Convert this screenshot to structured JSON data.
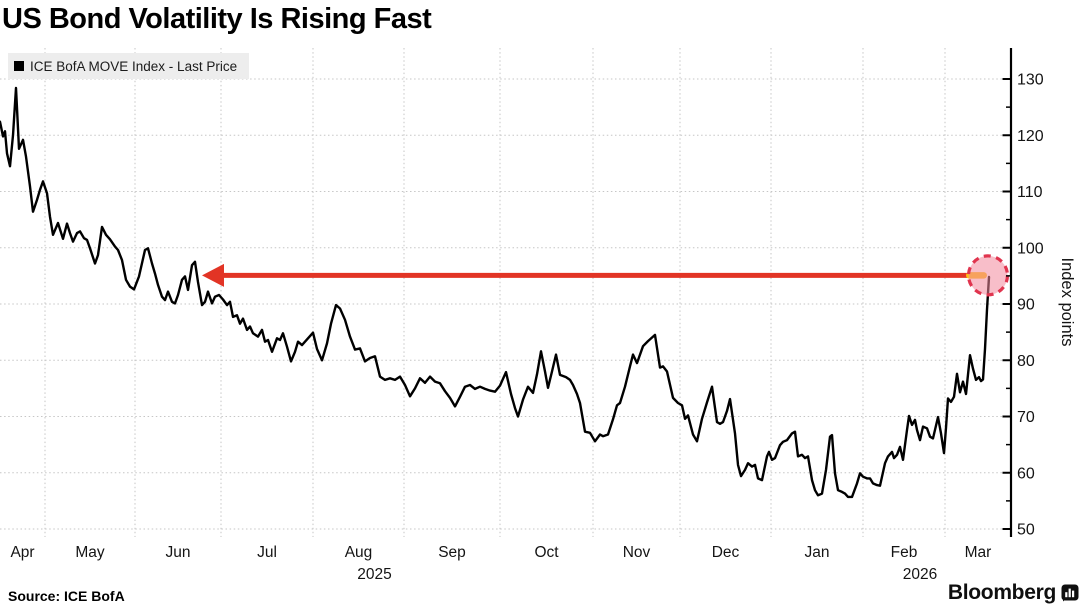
{
  "header": {
    "title": "US Bond Volatility Is Rising Fast"
  },
  "legend": {
    "series_label": "ICE BofA MOVE Index - Last Price",
    "swatch_color": "#000000"
  },
  "footer": {
    "source": "Source: ICE BofA",
    "brand": "Bloomberg"
  },
  "axes": {
    "y_label": "Index points",
    "y_ticks": [
      50,
      60,
      70,
      80,
      90,
      100,
      110,
      120,
      130
    ],
    "y_minor_ticks": [
      55,
      65,
      75,
      85,
      95,
      105,
      115,
      125
    ],
    "x_months": [
      "Apr",
      "May",
      "Jun",
      "Jul",
      "Aug",
      "Sep",
      "Oct",
      "Nov",
      "Dec",
      "Jan",
      "Feb",
      "Mar"
    ],
    "x_years": [
      {
        "label": "2025",
        "month_index": 4
      },
      {
        "label": "2026",
        "month_index": 10
      }
    ]
  },
  "annotation": {
    "arrow_color": "#e23425",
    "circle_stroke": "#e0344e",
    "circle_fill": "rgba(243,137,157,0.55)",
    "dash_color": "#fdc012",
    "highlight_level": 95
  },
  "chart_data": {
    "type": "line",
    "title": "US Bond Volatility Is Rising Fast",
    "series_name": "ICE BofA MOVE Index - Last Price",
    "xlabel": "Apr 2025 - Mar 2026",
    "ylabel": "Index points",
    "ylim": [
      50,
      130
    ],
    "grid": true,
    "legend_position": "top-left",
    "line_color": "#000000",
    "last_price": 94.8,
    "x_unit": "plot-px (0 = mid-Apr 2025, 1011 = right axis, months marked by gridlines)",
    "y_unit": "index points",
    "points": [
      [
        0,
        122.4
      ],
      [
        3,
        119.8
      ],
      [
        5,
        120.7
      ],
      [
        7,
        116.8
      ],
      [
        10,
        114.5
      ],
      [
        13,
        120.0
      ],
      [
        16,
        128.4
      ],
      [
        19,
        117.6
      ],
      [
        23,
        119.2
      ],
      [
        26,
        116.2
      ],
      [
        30,
        110.9
      ],
      [
        33,
        106.4
      ],
      [
        37,
        108.5
      ],
      [
        40,
        110.3
      ],
      [
        43,
        111.8
      ],
      [
        47,
        109.7
      ],
      [
        50,
        105.5
      ],
      [
        53,
        102.3
      ],
      [
        58,
        104.4
      ],
      [
        63,
        101.6
      ],
      [
        67,
        104.3
      ],
      [
        70,
        102.6
      ],
      [
        73,
        101.1
      ],
      [
        77,
        102.6
      ],
      [
        80,
        102.9
      ],
      [
        84,
        101.7
      ],
      [
        87,
        101.4
      ],
      [
        90,
        99.9
      ],
      [
        95,
        97.2
      ],
      [
        98,
        98.7
      ],
      [
        102,
        103.7
      ],
      [
        106,
        102.3
      ],
      [
        110,
        101.5
      ],
      [
        115,
        100.2
      ],
      [
        118,
        99.6
      ],
      [
        122,
        97.8
      ],
      [
        126,
        94.3
      ],
      [
        130,
        93.1
      ],
      [
        134,
        92.6
      ],
      [
        139,
        94.9
      ],
      [
        145,
        99.6
      ],
      [
        148,
        99.9
      ],
      [
        152,
        97.2
      ],
      [
        155,
        95.4
      ],
      [
        158,
        93.4
      ],
      [
        162,
        91.3
      ],
      [
        165,
        90.7
      ],
      [
        168,
        92.2
      ],
      [
        172,
        90.4
      ],
      [
        175,
        90.1
      ],
      [
        178,
        91.6
      ],
      [
        182,
        94.3
      ],
      [
        185,
        94.9
      ],
      [
        188,
        92.5
      ],
      [
        192,
        96.9
      ],
      [
        195,
        97.5
      ],
      [
        198,
        93.9
      ],
      [
        202,
        89.8
      ],
      [
        205,
        90.4
      ],
      [
        208,
        92.2
      ],
      [
        212,
        90.1
      ],
      [
        215,
        91.3
      ],
      [
        219,
        91.6
      ],
      [
        223,
        90.8
      ],
      [
        227,
        89.8
      ],
      [
        230,
        90.4
      ],
      [
        233,
        87.7
      ],
      [
        237,
        88.0
      ],
      [
        240,
        86.5
      ],
      [
        243,
        87.4
      ],
      [
        247,
        85.4
      ],
      [
        250,
        86.0
      ],
      [
        253,
        84.8
      ],
      [
        258,
        84.2
      ],
      [
        262,
        85.4
      ],
      [
        265,
        83.3
      ],
      [
        268,
        83.6
      ],
      [
        272,
        81.5
      ],
      [
        277,
        83.9
      ],
      [
        280,
        83.6
      ],
      [
        283,
        84.8
      ],
      [
        287,
        82.4
      ],
      [
        291,
        79.8
      ],
      [
        295,
        81.5
      ],
      [
        298,
        83.3
      ],
      [
        302,
        82.7
      ],
      [
        306,
        83.5
      ],
      [
        310,
        84.3
      ],
      [
        313,
        84.9
      ],
      [
        317,
        82.0
      ],
      [
        322,
        80.0
      ],
      [
        327,
        83.0
      ],
      [
        331,
        86.5
      ],
      [
        336,
        89.8
      ],
      [
        340,
        89.2
      ],
      [
        345,
        87.2
      ],
      [
        350,
        84.2
      ],
      [
        355,
        81.9
      ],
      [
        360,
        82.1
      ],
      [
        365,
        79.8
      ],
      [
        370,
        80.4
      ],
      [
        375,
        80.7
      ],
      [
        380,
        77.1
      ],
      [
        385,
        76.5
      ],
      [
        390,
        76.8
      ],
      [
        395,
        76.5
      ],
      [
        400,
        77.1
      ],
      [
        405,
        75.6
      ],
      [
        410,
        73.6
      ],
      [
        415,
        75.0
      ],
      [
        420,
        76.8
      ],
      [
        425,
        76.0
      ],
      [
        430,
        77.1
      ],
      [
        435,
        76.2
      ],
      [
        440,
        75.9
      ],
      [
        445,
        74.5
      ],
      [
        450,
        73.3
      ],
      [
        455,
        71.8
      ],
      [
        460,
        73.5
      ],
      [
        465,
        75.3
      ],
      [
        470,
        75.6
      ],
      [
        475,
        74.9
      ],
      [
        480,
        75.3
      ],
      [
        485,
        74.9
      ],
      [
        490,
        74.6
      ],
      [
        495,
        74.4
      ],
      [
        500,
        75.5
      ],
      [
        506,
        77.9
      ],
      [
        511,
        74.0
      ],
      [
        515,
        71.5
      ],
      [
        518,
        70.0
      ],
      [
        523,
        73.0
      ],
      [
        528,
        75.3
      ],
      [
        533,
        74.2
      ],
      [
        537,
        77.5
      ],
      [
        541,
        81.6
      ],
      [
        545,
        78.0
      ],
      [
        548,
        75.1
      ],
      [
        552,
        78.0
      ],
      [
        556,
        81.0
      ],
      [
        560,
        77.4
      ],
      [
        566,
        77.0
      ],
      [
        570,
        76.5
      ],
      [
        573,
        75.6
      ],
      [
        577,
        74.0
      ],
      [
        580,
        72.4
      ],
      [
        585,
        67.3
      ],
      [
        590,
        67.1
      ],
      [
        595,
        65.6
      ],
      [
        600,
        66.8
      ],
      [
        603,
        66.5
      ],
      [
        608,
        66.8
      ],
      [
        613,
        69.5
      ],
      [
        617,
        72.0
      ],
      [
        620,
        72.4
      ],
      [
        625,
        75.3
      ],
      [
        630,
        78.9
      ],
      [
        633,
        81.0
      ],
      [
        637,
        79.5
      ],
      [
        643,
        82.5
      ],
      [
        648,
        83.4
      ],
      [
        655,
        84.5
      ],
      [
        660,
        78.7
      ],
      [
        663,
        78.9
      ],
      [
        667,
        78.0
      ],
      [
        673,
        73.3
      ],
      [
        678,
        72.4
      ],
      [
        682,
        72.0
      ],
      [
        685,
        69.6
      ],
      [
        688,
        70.2
      ],
      [
        693,
        66.8
      ],
      [
        697,
        65.6
      ],
      [
        702,
        69.6
      ],
      [
        707,
        72.5
      ],
      [
        712,
        75.3
      ],
      [
        717,
        69.0
      ],
      [
        720,
        68.7
      ],
      [
        723,
        69.0
      ],
      [
        727,
        71.0
      ],
      [
        730,
        73.1
      ],
      [
        735,
        67.0
      ],
      [
        738,
        61.4
      ],
      [
        741,
        59.4
      ],
      [
        745,
        60.5
      ],
      [
        748,
        61.7
      ],
      [
        752,
        61.1
      ],
      [
        755,
        61.4
      ],
      [
        758,
        59.0
      ],
      [
        762,
        58.7
      ],
      [
        767,
        62.9
      ],
      [
        769,
        63.7
      ],
      [
        772,
        62.3
      ],
      [
        775,
        62.6
      ],
      [
        780,
        64.9
      ],
      [
        783,
        65.5
      ],
      [
        787,
        65.8
      ],
      [
        792,
        67.0
      ],
      [
        795,
        67.3
      ],
      [
        798,
        62.9
      ],
      [
        802,
        63.2
      ],
      [
        805,
        62.6
      ],
      [
        808,
        62.9
      ],
      [
        812,
        58.7
      ],
      [
        815,
        56.9
      ],
      [
        818,
        56.0
      ],
      [
        822,
        56.3
      ],
      [
        826,
        60.5
      ],
      [
        830,
        66.4
      ],
      [
        832,
        66.7
      ],
      [
        835,
        59.9
      ],
      [
        838,
        56.9
      ],
      [
        842,
        56.6
      ],
      [
        845,
        56.3
      ],
      [
        848,
        55.7
      ],
      [
        852,
        55.7
      ],
      [
        857,
        58.1
      ],
      [
        860,
        59.9
      ],
      [
        863,
        59.3
      ],
      [
        867,
        59.0
      ],
      [
        870,
        59.0
      ],
      [
        873,
        58.1
      ],
      [
        877,
        57.8
      ],
      [
        880,
        57.7
      ],
      [
        885,
        61.7
      ],
      [
        888,
        62.9
      ],
      [
        892,
        63.7
      ],
      [
        894,
        62.6
      ],
      [
        897,
        63.2
      ],
      [
        900,
        64.6
      ],
      [
        903,
        62.3
      ],
      [
        907,
        67.6
      ],
      [
        909,
        70.1
      ],
      [
        912,
        68.5
      ],
      [
        915,
        69.4
      ],
      [
        917,
        67.6
      ],
      [
        920,
        65.8
      ],
      [
        923,
        68.2
      ],
      [
        927,
        67.9
      ],
      [
        930,
        66.4
      ],
      [
        933,
        66.1
      ],
      [
        938,
        69.9
      ],
      [
        941,
        67.0
      ],
      [
        944,
        63.5
      ],
      [
        946,
        68.0
      ],
      [
        948,
        73.2
      ],
      [
        951,
        72.6
      ],
      [
        954,
        73.5
      ],
      [
        957,
        77.6
      ],
      [
        960,
        74.3
      ],
      [
        963,
        76.2
      ],
      [
        966,
        74.0
      ],
      [
        970,
        80.9
      ],
      [
        973,
        78.5
      ],
      [
        976,
        76.5
      ],
      [
        979,
        77.0
      ],
      [
        981,
        76.3
      ],
      [
        983,
        76.6
      ],
      [
        985,
        82.0
      ],
      [
        987,
        89.0
      ],
      [
        989,
        94.8
      ]
    ]
  }
}
